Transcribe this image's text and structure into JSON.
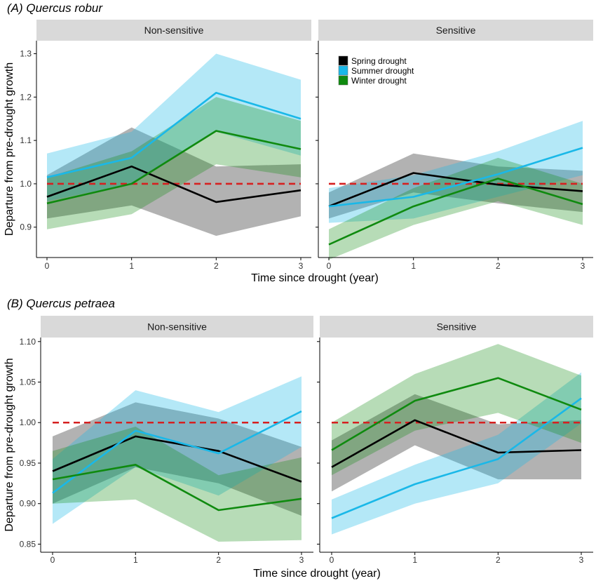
{
  "colors": {
    "spring": "#000000",
    "summer": "#1ab8e8",
    "winter": "#0f8a0f",
    "reference": "#d62020",
    "strip": "#d9d9d9"
  },
  "legend": [
    {
      "key": "spring",
      "label": "Spring drought"
    },
    {
      "key": "summer",
      "label": "Summer drought"
    },
    {
      "key": "winter",
      "label": "Winter drought"
    }
  ],
  "chart_data": [
    {
      "type": "line",
      "title": "(A) Quercus robur",
      "xlabel": "Time since drought (year)",
      "ylabel": "Departure from pre-drought growth",
      "x": [
        0,
        1,
        2,
        3
      ],
      "xticks": [
        "0",
        "1",
        "2",
        "3"
      ],
      "ylim": [
        0.83,
        1.33
      ],
      "yticks": [
        0.9,
        1.0,
        1.1,
        1.2,
        1.3
      ],
      "reference_line": 1.0,
      "legend_position": "top-left of Sensitive facet",
      "facets": [
        {
          "label": "Non-sensitive",
          "series": [
            {
              "name": "Spring drought",
              "key": "spring",
              "values": [
                0.97,
                1.04,
                0.958,
                0.985
              ],
              "lower": [
                0.92,
                0.95,
                0.88,
                0.925
              ],
              "upper": [
                1.02,
                1.13,
                1.04,
                1.045
              ]
            },
            {
              "name": "Summer drought",
              "key": "summer",
              "values": [
                1.015,
                1.06,
                1.21,
                1.15
              ],
              "lower": [
                0.96,
                1.0,
                1.12,
                1.065
              ],
              "upper": [
                1.07,
                1.12,
                1.3,
                1.24
              ]
            },
            {
              "name": "Winter drought",
              "key": "winter",
              "values": [
                0.955,
                1.0,
                1.122,
                1.08
              ],
              "lower": [
                0.895,
                0.93,
                1.045,
                1.015
              ],
              "upper": [
                1.015,
                1.075,
                1.2,
                1.145
              ]
            }
          ]
        },
        {
          "label": "Sensitive",
          "series": [
            {
              "name": "Spring drought",
              "key": "spring",
              "values": [
                0.948,
                1.025,
                0.998,
                0.983
              ],
              "lower": [
                0.92,
                0.98,
                0.955,
                0.935
              ],
              "upper": [
                0.98,
                1.07,
                1.04,
                1.03
              ]
            },
            {
              "name": "Summer drought",
              "key": "summer",
              "values": [
                0.948,
                0.97,
                1.022,
                1.083
              ],
              "lower": [
                0.91,
                0.92,
                0.97,
                1.02
              ],
              "upper": [
                0.99,
                1.02,
                1.075,
                1.145
              ]
            },
            {
              "name": "Winter drought",
              "key": "winter",
              "values": [
                0.86,
                0.948,
                1.012,
                0.953
              ],
              "lower": [
                0.825,
                0.905,
                0.96,
                0.905
              ],
              "upper": [
                0.895,
                0.99,
                1.06,
                1.0
              ]
            }
          ]
        }
      ]
    },
    {
      "type": "line",
      "title": "(B) Quercus petraea",
      "xlabel": "Time since drought (year)",
      "ylabel": "Departure from pre-drought growth",
      "x": [
        0,
        1,
        2,
        3
      ],
      "xticks": [
        "0",
        "1",
        "2",
        "3"
      ],
      "ylim": [
        0.84,
        1.105
      ],
      "yticks": [
        0.85,
        0.9,
        0.95,
        1.0,
        1.05,
        1.1
      ],
      "reference_line": 1.0,
      "facets": [
        {
          "label": "Non-sensitive",
          "series": [
            {
              "name": "Spring drought",
              "key": "spring",
              "values": [
                0.94,
                0.983,
                0.965,
                0.927
              ],
              "lower": [
                0.9,
                0.945,
                0.925,
                0.885
              ],
              "upper": [
                0.983,
                1.025,
                1.005,
                0.97
              ]
            },
            {
              "name": "Summer drought",
              "key": "summer",
              "values": [
                0.913,
                0.99,
                0.962,
                1.014
              ],
              "lower": [
                0.875,
                0.945,
                0.91,
                0.97
              ],
              "upper": [
                0.955,
                1.04,
                1.013,
                1.057
              ]
            },
            {
              "name": "Winter drought",
              "key": "winter",
              "values": [
                0.93,
                0.948,
                0.892,
                0.906
              ],
              "lower": [
                0.9,
                0.905,
                0.853,
                0.855
              ],
              "upper": [
                0.965,
                0.995,
                0.935,
                0.957
              ]
            }
          ]
        },
        {
          "label": "Sensitive",
          "series": [
            {
              "name": "Spring drought",
              "key": "spring",
              "values": [
                0.945,
                1.003,
                0.963,
                0.966
              ],
              "lower": [
                0.915,
                0.972,
                0.93,
                0.93
              ],
              "upper": [
                0.978,
                1.035,
                0.998,
                1.003
              ]
            },
            {
              "name": "Summer drought",
              "key": "summer",
              "values": [
                0.882,
                0.924,
                0.955,
                1.03
              ],
              "lower": [
                0.862,
                0.9,
                0.925,
                0.999
              ],
              "upper": [
                0.905,
                0.948,
                0.985,
                1.062
              ]
            },
            {
              "name": "Winter drought",
              "key": "winter",
              "values": [
                0.966,
                1.027,
                1.055,
                1.016
              ],
              "lower": [
                0.935,
                0.99,
                1.012,
                0.975
              ],
              "upper": [
                1.0,
                1.06,
                1.097,
                1.058
              ]
            }
          ]
        }
      ]
    }
  ]
}
